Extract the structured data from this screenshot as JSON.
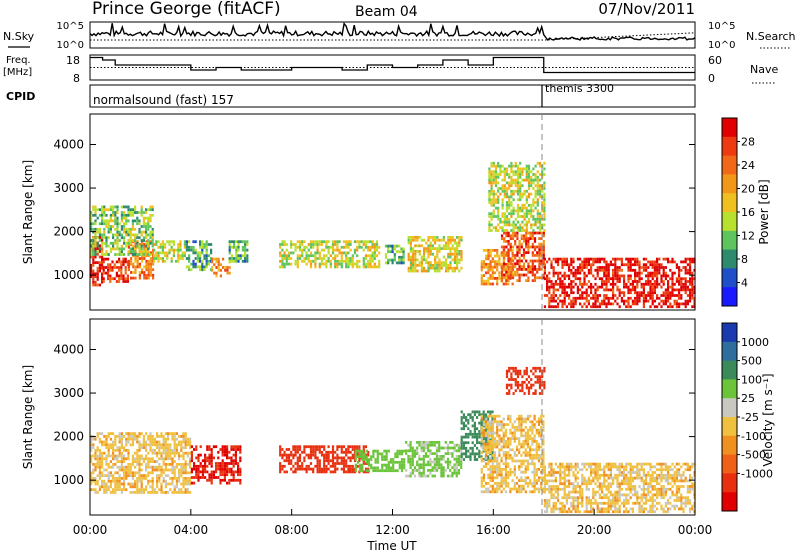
{
  "header": {
    "station": "Prince George (fitACF)",
    "beam": "Beam 04",
    "date": "07/Nov/2011"
  },
  "strips": {
    "nsky_label": "N.Sky",
    "nsky_ticks": [
      "10^5",
      "10^0"
    ],
    "nsearch_label": "N.Search",
    "nsearch_ticks": [
      "10^5",
      "10^0"
    ],
    "freq_label_1": "Freq.",
    "freq_label_2": "[MHz]",
    "freq_ticks": [
      "18",
      "8"
    ],
    "nave_label": "Nave",
    "nave_ticks": [
      "60",
      "0"
    ],
    "cpid_label": "CPID",
    "cpid_segments": [
      {
        "start_h": 0,
        "end_h": 18,
        "text": "normalsound (fast) 157"
      },
      {
        "start_h": 18,
        "end_h": 24,
        "text": "themis 3300"
      }
    ],
    "freq_steps": [
      [
        0,
        17
      ],
      [
        0.5,
        16
      ],
      [
        1,
        14
      ],
      [
        4,
        12
      ],
      [
        5,
        13
      ],
      [
        6,
        12
      ],
      [
        8,
        13
      ],
      [
        10,
        12
      ],
      [
        11,
        14
      ],
      [
        12,
        13
      ],
      [
        13,
        14
      ],
      [
        14,
        16
      ],
      [
        15,
        14
      ],
      [
        16,
        17
      ],
      [
        18,
        11
      ],
      [
        24,
        11
      ]
    ],
    "nave_level": 30
  },
  "chart_data": [
    {
      "type": "heatmap",
      "panel": "power",
      "ylabel": "Slant Range [km]",
      "xlabel": "Time UT",
      "ylim": [
        200,
        4700
      ],
      "xlim": [
        0,
        24
      ],
      "yticks": [
        1000,
        2000,
        3000,
        4000
      ],
      "xticks": [
        "00:00",
        "04:00",
        "08:00",
        "12:00",
        "16:00",
        "20:00",
        "00:00"
      ],
      "colorbar": {
        "label": "Power [dB]",
        "ticks": [
          "28",
          "24",
          "20",
          "16",
          "12",
          "8",
          "4"
        ],
        "colors": [
          "#1a1aff",
          "#1e4fc8",
          "#2e8a6c",
          "#5ec45e",
          "#b8e02e",
          "#f0c020",
          "#f29818",
          "#f06818",
          "#ee3a10",
          "#e00000"
        ]
      },
      "regions": [
        {
          "t0": 0.0,
          "t1": 0.5,
          "r0": 800,
          "r1": 1900,
          "v": 28
        },
        {
          "t0": 0.5,
          "t1": 1.5,
          "r0": 850,
          "r1": 1400,
          "v": 26
        },
        {
          "t0": 1.5,
          "t1": 2.5,
          "r0": 950,
          "r1": 1800,
          "v": 22
        },
        {
          "t0": 0.0,
          "t1": 2.5,
          "r0": 1500,
          "r1": 2600,
          "v": 12
        },
        {
          "t0": 2.5,
          "t1": 3.8,
          "r0": 1300,
          "r1": 1800,
          "v": 14
        },
        {
          "t0": 3.8,
          "t1": 4.8,
          "r0": 1100,
          "r1": 1800,
          "v": 10
        },
        {
          "t0": 4.8,
          "t1": 5.5,
          "r0": 1000,
          "r1": 1400,
          "v": 20
        },
        {
          "t0": 5.5,
          "t1": 6.2,
          "r0": 1300,
          "r1": 1800,
          "v": 10
        },
        {
          "t0": 7.5,
          "t1": 11.5,
          "r0": 1200,
          "r1": 1800,
          "v": 14
        },
        {
          "t0": 11.7,
          "t1": 12.4,
          "r0": 1300,
          "r1": 1700,
          "v": 10
        },
        {
          "t0": 12.6,
          "t1": 14.7,
          "r0": 1100,
          "r1": 1900,
          "v": 16
        },
        {
          "t0": 15.5,
          "t1": 16.8,
          "r0": 800,
          "r1": 1600,
          "v": 20
        },
        {
          "t0": 16.3,
          "t1": 18.0,
          "r0": 900,
          "r1": 2000,
          "v": 24
        },
        {
          "t0": 15.8,
          "t1": 18.0,
          "r0": 2000,
          "r1": 3600,
          "v": 14
        },
        {
          "t0": 18.0,
          "t1": 24.0,
          "r0": 300,
          "r1": 1400,
          "v": 28
        }
      ]
    },
    {
      "type": "heatmap",
      "panel": "velocity",
      "ylabel": "Slant Range [km]",
      "xlabel": "Time UT",
      "ylim": [
        200,
        4700
      ],
      "xlim": [
        0,
        24
      ],
      "yticks": [
        1000,
        2000,
        3000,
        4000
      ],
      "xticks": [
        "00:00",
        "04:00",
        "08:00",
        "12:00",
        "16:00",
        "20:00",
        "00:00"
      ],
      "colorbar": {
        "label": "Velocity [m s⁻¹]",
        "ticks": [
          "1000",
          "500",
          "100",
          "25",
          "-25",
          "-100",
          "-500",
          "-1000"
        ],
        "colors": [
          "#1a3ab0",
          "#2e6e9e",
          "#3a8a5a",
          "#6cc43a",
          "#c8c8c0",
          "#f0c040",
          "#f09020",
          "#f06018",
          "#e83010",
          "#e00000"
        ]
      },
      "regions": [
        {
          "t0": 0.0,
          "t1": 4.0,
          "r0": 700,
          "r1": 2100,
          "v": 0
        },
        {
          "t0": 4.0,
          "t1": 6.0,
          "r0": 900,
          "r1": 1800,
          "v": -500
        },
        {
          "t0": 7.5,
          "t1": 11.0,
          "r0": 1200,
          "r1": 1800,
          "v": -300
        },
        {
          "t0": 10.5,
          "t1": 12.5,
          "r0": 1200,
          "r1": 1700,
          "v": 150
        },
        {
          "t0": 12.5,
          "t1": 14.7,
          "r0": 1100,
          "r1": 1900,
          "v": 120
        },
        {
          "t0": 14.7,
          "t1": 16.0,
          "r0": 1500,
          "r1": 2600,
          "v": 300
        },
        {
          "t0": 15.5,
          "t1": 18.0,
          "r0": 700,
          "r1": 2500,
          "v": 0
        },
        {
          "t0": 16.5,
          "t1": 18.0,
          "r0": 3000,
          "r1": 3600,
          "v": -400
        },
        {
          "t0": 18.0,
          "t1": 24.0,
          "r0": 300,
          "r1": 1400,
          "v": 0
        }
      ]
    }
  ]
}
